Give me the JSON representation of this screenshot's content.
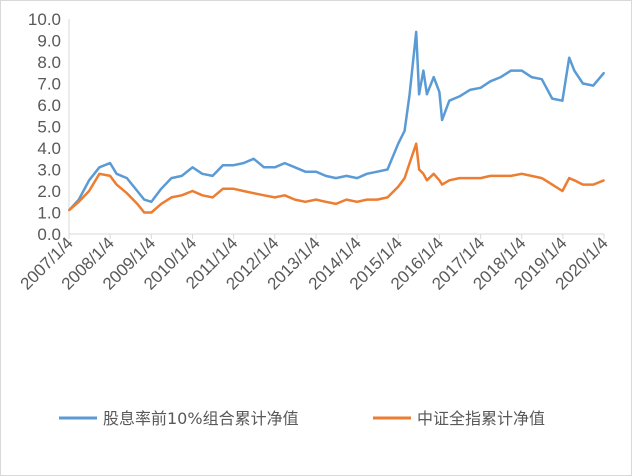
{
  "chart_data": {
    "type": "line",
    "title": "",
    "xlabel": "",
    "ylabel": "",
    "ylim": [
      0,
      10
    ],
    "yticks": [
      "0.0",
      "1.0",
      "2.0",
      "3.0",
      "4.0",
      "5.0",
      "6.0",
      "7.0",
      "8.0",
      "9.0",
      "10.0"
    ],
    "xticks": [
      "2007/1/4",
      "2008/1/4",
      "2009/1/4",
      "2010/1/4",
      "2011/1/4",
      "2012/1/4",
      "2013/1/4",
      "2014/1/4",
      "2015/1/4",
      "2016/1/4",
      "2017/1/4",
      "2018/1/4",
      "2019/1/4",
      "2020/1/4"
    ],
    "grid": "none",
    "legend": "bottom",
    "series": [
      {
        "name": "股息率前10%组合累计净值",
        "color": "#5B9BD5",
        "x": [
          "2007/1/4",
          "2007/4/1",
          "2007/7/1",
          "2007/10/1",
          "2008/1/4",
          "2008/3/1",
          "2008/6/1",
          "2008/9/1",
          "2008/11/1",
          "2009/1/4",
          "2009/4/1",
          "2009/7/1",
          "2009/10/1",
          "2010/1/4",
          "2010/4/1",
          "2010/7/1",
          "2010/10/1",
          "2011/1/4",
          "2011/4/1",
          "2011/7/1",
          "2011/10/1",
          "2012/1/4",
          "2012/4/1",
          "2012/7/1",
          "2012/10/1",
          "2013/1/4",
          "2013/4/1",
          "2013/7/1",
          "2013/10/1",
          "2014/1/4",
          "2014/4/1",
          "2014/7/1",
          "2014/10/1",
          "2015/1/4",
          "2015/3/1",
          "2015/4/15",
          "2015/6/12",
          "2015/7/8",
          "2015/8/15",
          "2015/9/15",
          "2015/11/15",
          "2016/1/4",
          "2016/1/28",
          "2016/4/1",
          "2016/7/1",
          "2016/10/1",
          "2017/1/4",
          "2017/4/1",
          "2017/7/1",
          "2017/10/1",
          "2018/1/4",
          "2018/4/1",
          "2018/7/1",
          "2018/10/1",
          "2018/12/31",
          "2019/3/1",
          "2019/4/15",
          "2019/7/1",
          "2019/10/1",
          "2020/1/4"
        ],
        "values": [
          1.1,
          1.6,
          2.5,
          3.1,
          3.3,
          2.8,
          2.6,
          2.0,
          1.6,
          1.5,
          2.1,
          2.6,
          2.7,
          3.1,
          2.8,
          2.7,
          3.2,
          3.2,
          3.3,
          3.5,
          3.1,
          3.1,
          3.3,
          3.1,
          2.9,
          2.9,
          2.7,
          2.6,
          2.7,
          2.6,
          2.8,
          2.9,
          3.0,
          4.2,
          4.8,
          6.5,
          9.4,
          6.5,
          7.6,
          6.5,
          7.3,
          6.6,
          5.3,
          6.2,
          6.4,
          6.7,
          6.8,
          7.1,
          7.3,
          7.6,
          7.6,
          7.3,
          7.2,
          6.3,
          6.2,
          8.2,
          7.6,
          7.0,
          6.9,
          7.5
        ]
      },
      {
        "name": "中证全指累计净值",
        "color": "#ED7D31",
        "x": [
          "2007/1/4",
          "2007/4/1",
          "2007/7/1",
          "2007/10/1",
          "2008/1/4",
          "2008/3/1",
          "2008/6/1",
          "2008/9/1",
          "2008/11/1",
          "2009/1/4",
          "2009/4/1",
          "2009/7/1",
          "2009/10/1",
          "2010/1/4",
          "2010/4/1",
          "2010/7/1",
          "2010/10/1",
          "2011/1/4",
          "2011/4/1",
          "2011/7/1",
          "2011/10/1",
          "2012/1/4",
          "2012/4/1",
          "2012/7/1",
          "2012/10/1",
          "2013/1/4",
          "2013/4/1",
          "2013/7/1",
          "2013/10/1",
          "2014/1/4",
          "2014/4/1",
          "2014/7/1",
          "2014/10/1",
          "2015/1/4",
          "2015/3/1",
          "2015/4/15",
          "2015/6/12",
          "2015/7/8",
          "2015/8/15",
          "2015/9/15",
          "2015/11/15",
          "2016/1/4",
          "2016/1/28",
          "2016/4/1",
          "2016/7/1",
          "2016/10/1",
          "2017/1/4",
          "2017/4/1",
          "2017/7/1",
          "2017/10/1",
          "2018/1/4",
          "2018/4/1",
          "2018/7/1",
          "2018/10/1",
          "2018/12/31",
          "2019/3/1",
          "2019/4/15",
          "2019/7/1",
          "2019/10/1",
          "2020/1/4"
        ],
        "values": [
          1.1,
          1.5,
          2.0,
          2.8,
          2.7,
          2.3,
          1.9,
          1.4,
          1.0,
          1.0,
          1.4,
          1.7,
          1.8,
          2.0,
          1.8,
          1.7,
          2.1,
          2.1,
          2.0,
          1.9,
          1.8,
          1.7,
          1.8,
          1.6,
          1.5,
          1.6,
          1.5,
          1.4,
          1.6,
          1.5,
          1.6,
          1.6,
          1.7,
          2.2,
          2.6,
          3.3,
          4.2,
          3.0,
          2.8,
          2.5,
          2.8,
          2.5,
          2.3,
          2.5,
          2.6,
          2.6,
          2.6,
          2.7,
          2.7,
          2.7,
          2.8,
          2.7,
          2.6,
          2.3,
          2.0,
          2.6,
          2.5,
          2.3,
          2.3,
          2.5
        ]
      }
    ]
  }
}
